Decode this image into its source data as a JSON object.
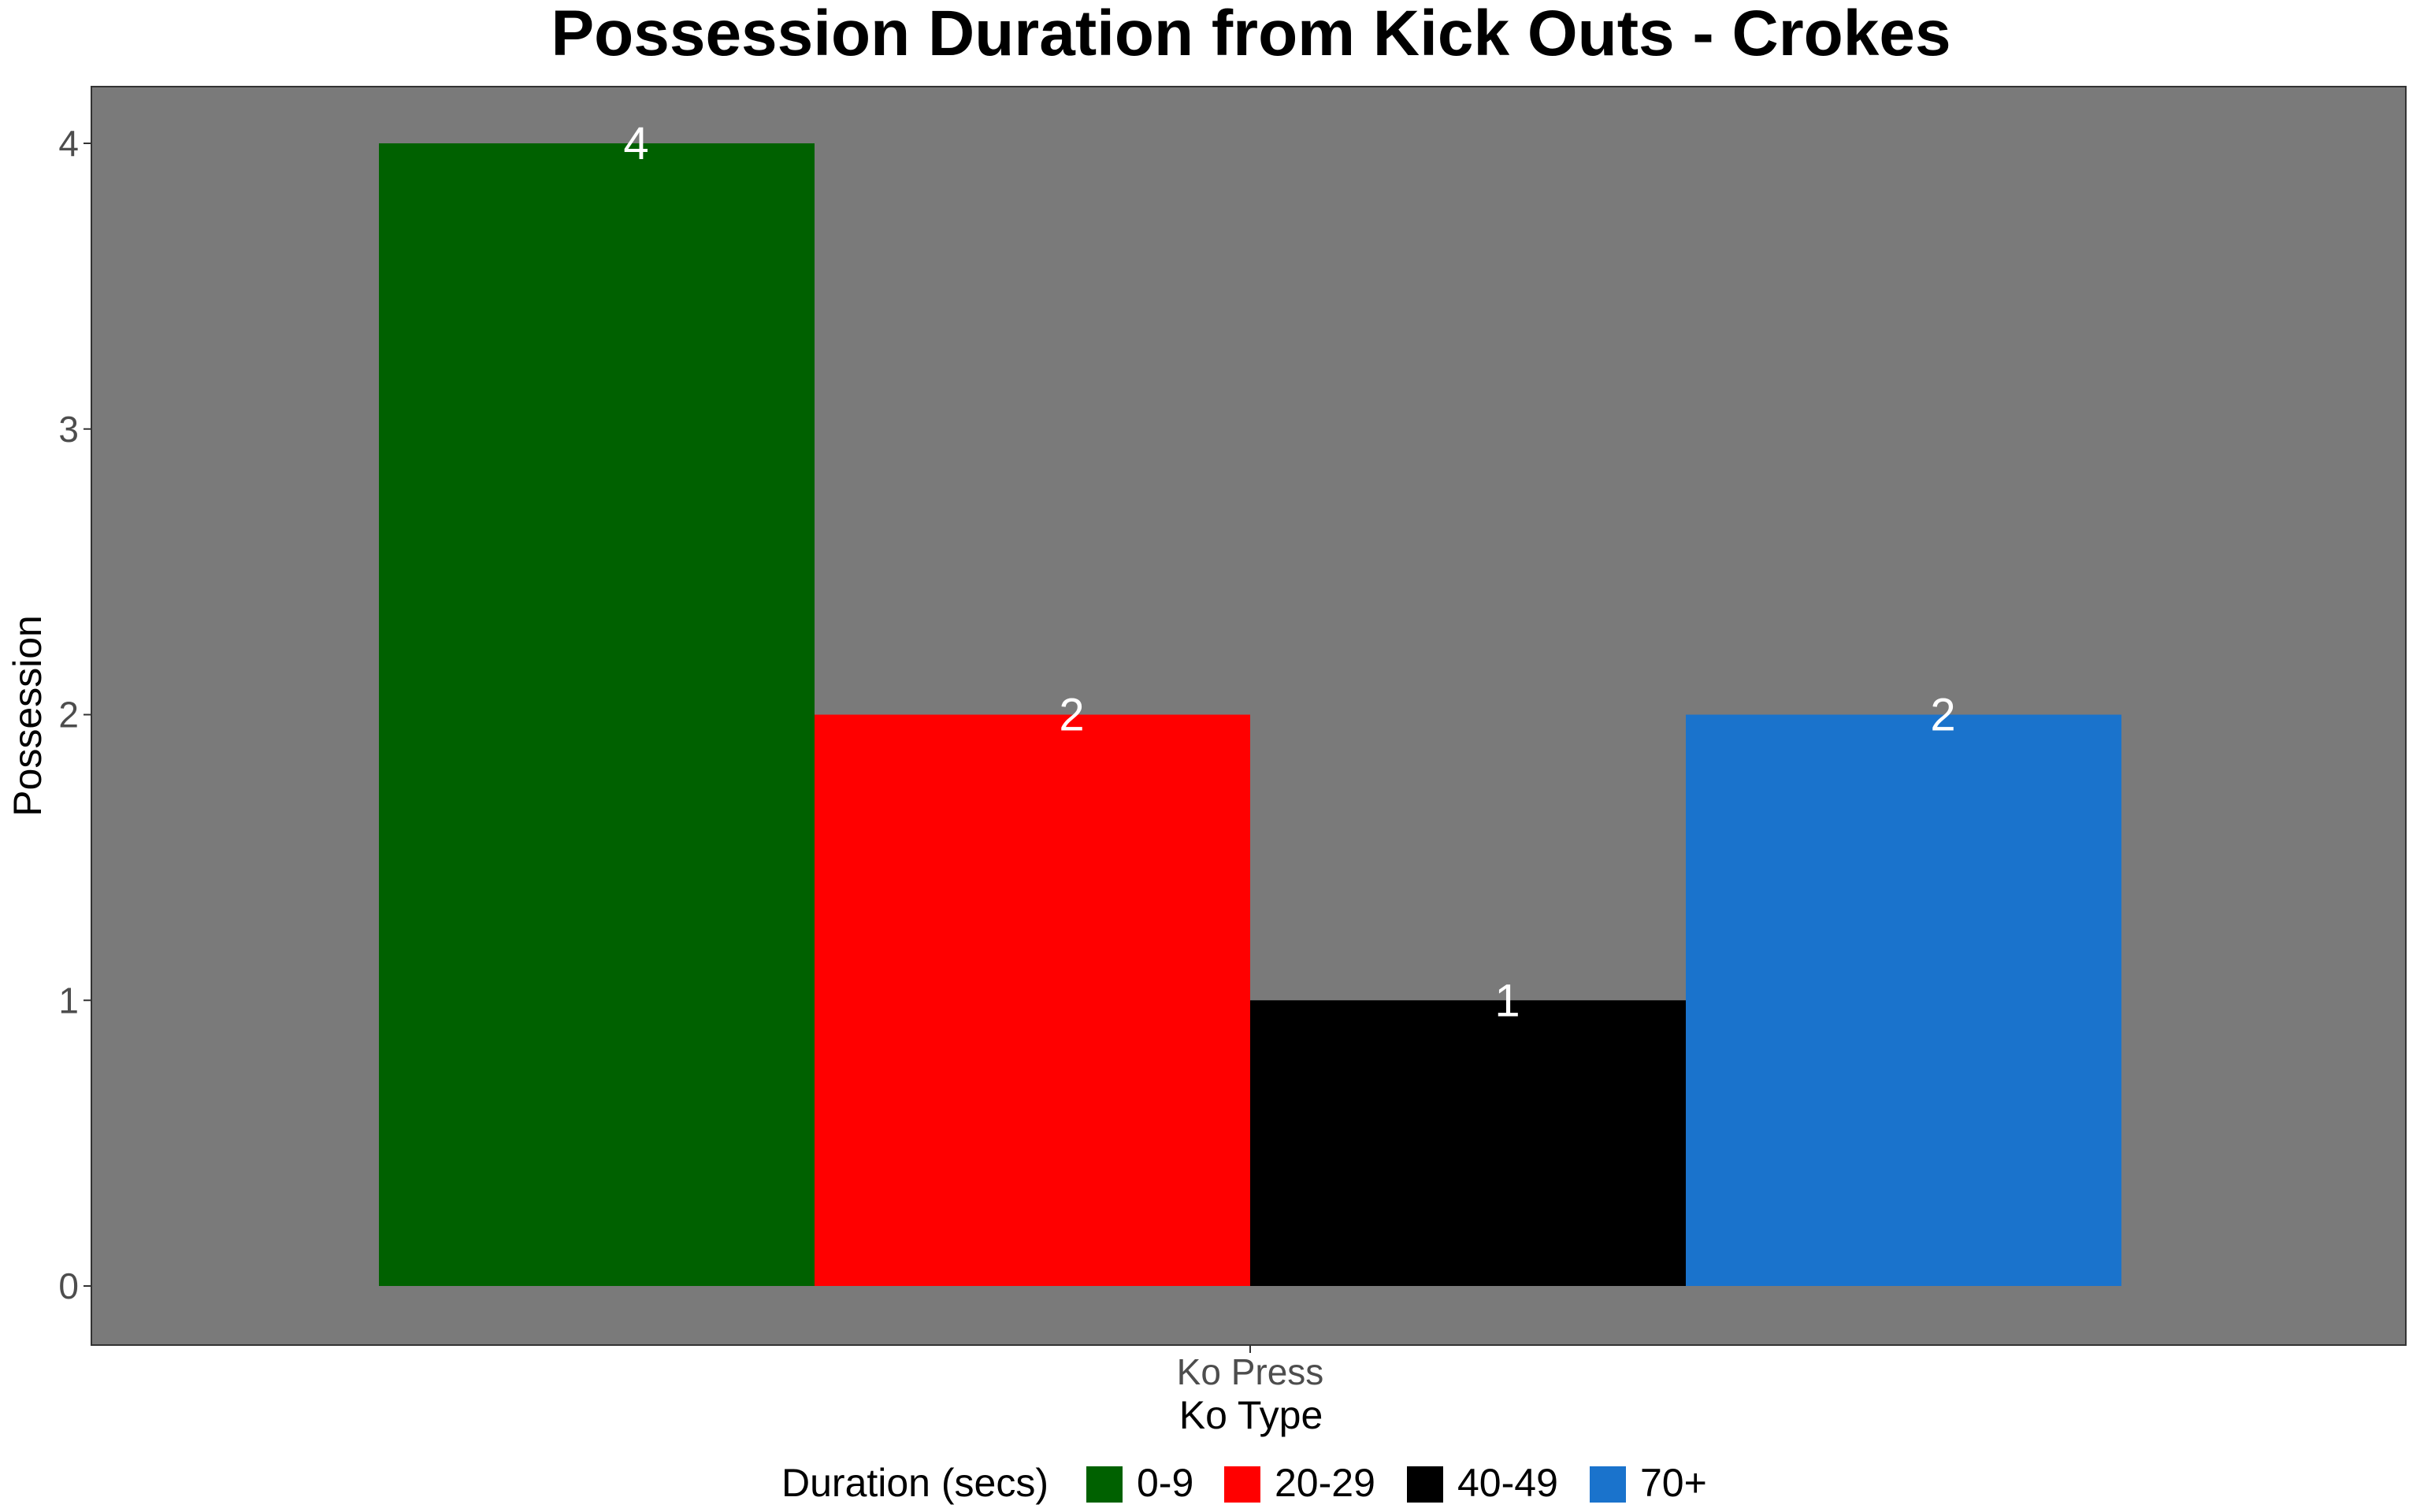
{
  "chart_data": {
    "type": "bar",
    "title": "Possession Duration from Kick Outs - Crokes",
    "xlabel": "Ko Type",
    "ylabel": "Possession",
    "categories": [
      "Ko Press"
    ],
    "series": [
      {
        "name": "0-9",
        "values": [
          4
        ],
        "color": "#006100"
      },
      {
        "name": "20-29",
        "values": [
          2
        ],
        "color": "#ff0000"
      },
      {
        "name": "40-49",
        "values": [
          1
        ],
        "color": "#000000"
      },
      {
        "name": "70+",
        "values": [
          2
        ],
        "color": "#1a73cc"
      }
    ],
    "yticks": [
      "0",
      "1",
      "2",
      "3",
      "4"
    ],
    "ylim": [
      0,
      4
    ],
    "legend_title": "Duration (secs)",
    "legend_position": "bottom",
    "grid": false,
    "panel_color": "#7a7a7a"
  }
}
